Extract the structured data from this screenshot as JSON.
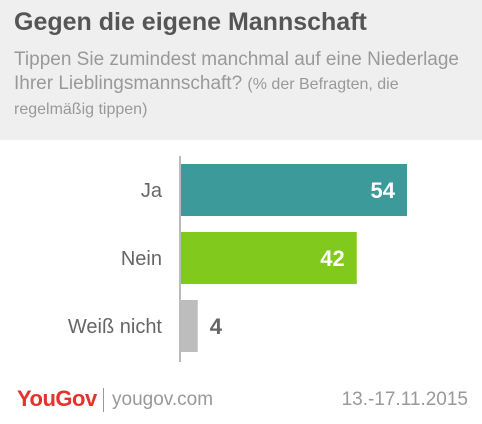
{
  "header": {
    "title": "Gegen die eigene Mannschaft",
    "subtitle_main": "Tippen Sie zumindest manchmal auf eine Niederlage Ihrer Lieblingsmannschaft?",
    "subtitle_note": "(% der Befragten, die regelmäßig tippen)"
  },
  "chart_data": {
    "type": "bar",
    "orientation": "horizontal",
    "categories": [
      "Ja",
      "Nein",
      "Weiß nicht"
    ],
    "values": [
      54,
      42,
      4
    ],
    "colors": [
      "#3d9a9b",
      "#82c91e",
      "#bdbdbd"
    ],
    "value_label_colors": [
      "#ffffff",
      "#ffffff",
      "#666666"
    ],
    "xlim": [
      0,
      54
    ],
    "grid": false
  },
  "footer": {
    "logo": "YouGov",
    "site": "yougov.com",
    "date": "13.-17.11.2015"
  },
  "colors": {
    "title": "#555555",
    "subtitle": "#999999",
    "brand": "#e3332d",
    "axis": "#777777"
  }
}
